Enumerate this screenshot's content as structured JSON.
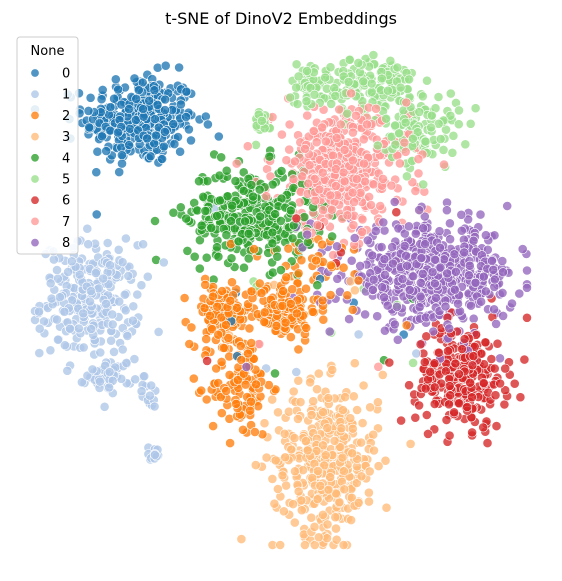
{
  "chart_data": {
    "type": "scatter",
    "title": "t-SNE of DinoV2 Embeddings",
    "xlabel": "",
    "ylabel": "",
    "axes_visible": false,
    "grid": false,
    "legend": {
      "title": "None",
      "placement": "top-left",
      "entries": [
        "0",
        "1",
        "2",
        "3",
        "4",
        "5",
        "6",
        "7",
        "8"
      ]
    },
    "xlim": [
      0,
      100
    ],
    "ylim": [
      0,
      100
    ],
    "point_style": {
      "opacity": 0.78,
      "edge_color": "#ffffff"
    },
    "series": [
      {
        "name": "0",
        "color": "#1f77b4",
        "clusters": [
          {
            "center": [
              22,
              86
            ],
            "spread": [
              7.5,
              6
            ],
            "count": 330
          }
        ]
      },
      {
        "name": "1",
        "color": "#aec7e8",
        "clusters": [
          {
            "center": [
              12,
              50
            ],
            "spread": [
              6.5,
              7.5
            ],
            "count": 260
          },
          {
            "center": [
              16,
              35
            ],
            "spread": [
              3,
              2.2
            ],
            "count": 50
          },
          {
            "center": [
              24,
              31
            ],
            "spread": [
              1,
              1.6
            ],
            "count": 12
          },
          {
            "center": [
              25,
              19
            ],
            "spread": [
              1,
              1.3
            ],
            "count": 12
          }
        ]
      },
      {
        "name": "2",
        "color": "#ff7f0e",
        "clusters": [
          {
            "center": [
              38,
              47
            ],
            "spread": [
              4,
              4
            ],
            "count": 110
          },
          {
            "center": [
              50,
              48
            ],
            "spread": [
              5,
              4
            ],
            "count": 120
          },
          {
            "center": [
              42,
              33
            ],
            "spread": [
              4,
              7
            ],
            "count": 110
          },
          {
            "center": [
              55,
              57
            ],
            "spread": [
              10,
              5
            ],
            "count": 40
          }
        ]
      },
      {
        "name": "3",
        "color": "#ffbb78",
        "clusters": [
          {
            "center": [
              59,
              18
            ],
            "spread": [
              7,
              10
            ],
            "count": 380
          }
        ]
      },
      {
        "name": "4",
        "color": "#2ca02c",
        "clusters": [
          {
            "center": [
              44,
              67
            ],
            "spread": [
              8.5,
              6.5
            ],
            "count": 320
          }
        ]
      },
      {
        "name": "5",
        "color": "#98df8a",
        "clusters": [
          {
            "center": [
              68,
              93
            ],
            "spread": [
              6,
              4
            ],
            "count": 140
          },
          {
            "center": [
              78,
              84
            ],
            "spread": [
              5,
              5
            ],
            "count": 110
          },
          {
            "center": [
              56,
              93
            ],
            "spread": [
              3,
              3
            ],
            "count": 50
          },
          {
            "center": [
              46,
              85
            ],
            "spread": [
              2,
              2
            ],
            "count": 20
          }
        ]
      },
      {
        "name": "6",
        "color": "#d62728",
        "clusters": [
          {
            "center": [
              86,
              35
            ],
            "spread": [
              6,
              7
            ],
            "count": 260
          }
        ]
      },
      {
        "name": "7",
        "color": "#ff9896",
        "clusters": [
          {
            "center": [
              62,
              76
            ],
            "spread": [
              9,
              8
            ],
            "count": 440
          }
        ]
      },
      {
        "name": "8",
        "color": "#9467bd",
        "clusters": [
          {
            "center": [
              80,
              55
            ],
            "spread": [
              11,
              6.5
            ],
            "count": 560
          }
        ]
      }
    ]
  }
}
